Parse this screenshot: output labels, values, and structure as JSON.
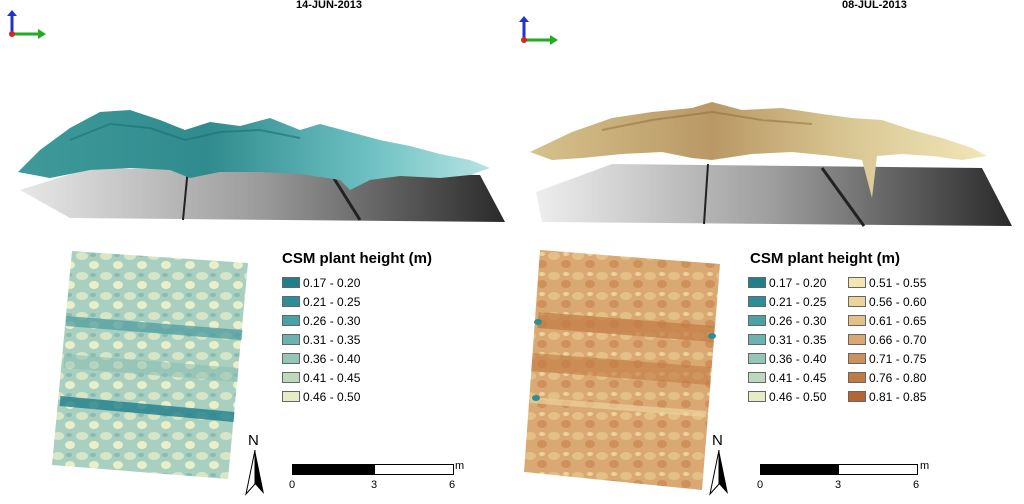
{
  "panels": [
    {
      "date": "14-JUN-2013",
      "legend_title": "CSM plant height (m)",
      "legend": [
        {
          "label": "0.17 - 0.20",
          "color": "#1f7f8c"
        },
        {
          "label": "0.21 - 0.25",
          "color": "#2b8e98"
        },
        {
          "label": "0.26 - 0.30",
          "color": "#4aa1a6"
        },
        {
          "label": "0.31 - 0.35",
          "color": "#6db1b0"
        },
        {
          "label": "0.36 - 0.40",
          "color": "#95c5b8"
        },
        {
          "label": "0.41 - 0.45",
          "color": "#bcd8bd"
        },
        {
          "label": "0.46 - 0.50",
          "color": "#e7ecc4"
        }
      ],
      "north": "N",
      "scale": {
        "unit": "m",
        "ticks": [
          "0",
          "3",
          "6"
        ]
      }
    },
    {
      "date": "08-JUL-2013",
      "legend_title": "CSM plant height (m)",
      "legend": [
        {
          "label": "0.17 - 0.20",
          "color": "#1f7f8c"
        },
        {
          "label": "0.21 - 0.25",
          "color": "#2b8e98"
        },
        {
          "label": "0.26 - 0.30",
          "color": "#4aa1a6"
        },
        {
          "label": "0.31 - 0.35",
          "color": "#6db1b0"
        },
        {
          "label": "0.36 - 0.40",
          "color": "#95c5b8"
        },
        {
          "label": "0.41 - 0.45",
          "color": "#bcd8bd"
        },
        {
          "label": "0.46 - 0.50",
          "color": "#e7ecc4"
        },
        {
          "label": "0.51 - 0.55",
          "color": "#f3e6b0"
        },
        {
          "label": "0.56 - 0.60",
          "color": "#ecd39a"
        },
        {
          "label": "0.61 - 0.65",
          "color": "#e4bf86"
        },
        {
          "label": "0.66 - 0.70",
          "color": "#daa872"
        },
        {
          "label": "0.71 - 0.75",
          "color": "#cf915c"
        },
        {
          "label": "0.76 - 0.80",
          "color": "#c27a45"
        },
        {
          "label": "0.81 - 0.85",
          "color": "#b5652f"
        }
      ],
      "north": "N",
      "scale": {
        "unit": "m",
        "ticks": [
          "0",
          "3",
          "6"
        ]
      }
    }
  ]
}
